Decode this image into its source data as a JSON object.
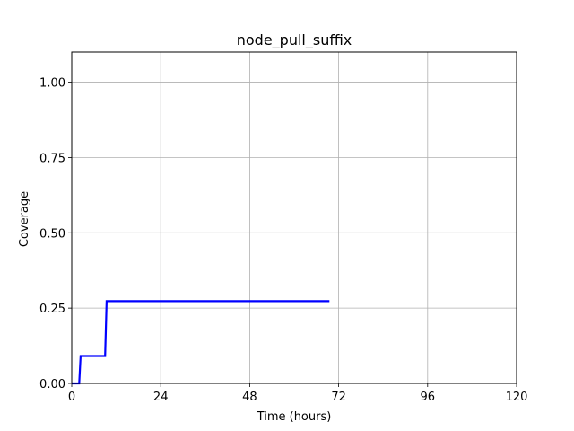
{
  "chart_data": {
    "type": "line",
    "title": "node_pull_suffix",
    "xlabel": "Time (hours)",
    "ylabel": "Coverage",
    "xlim": [
      0,
      120
    ],
    "ylim": [
      0,
      1.1
    ],
    "xticks": [
      0,
      24,
      48,
      72,
      96,
      120
    ],
    "xtick_labels": [
      "0",
      "24",
      "48",
      "72",
      "96",
      "120"
    ],
    "yticks": [
      0.0,
      0.25,
      0.5,
      0.75,
      1.0
    ],
    "ytick_labels": [
      "0.00",
      "0.25",
      "0.50",
      "0.75",
      "1.00"
    ],
    "grid": true,
    "series": [
      {
        "name": "coverage",
        "color": "#0000ff",
        "x": [
          0,
          2.0,
          2.4,
          9.0,
          9.4,
          69.5
        ],
        "y": [
          0.0,
          0.0,
          0.091,
          0.091,
          0.273,
          0.273
        ]
      }
    ]
  }
}
